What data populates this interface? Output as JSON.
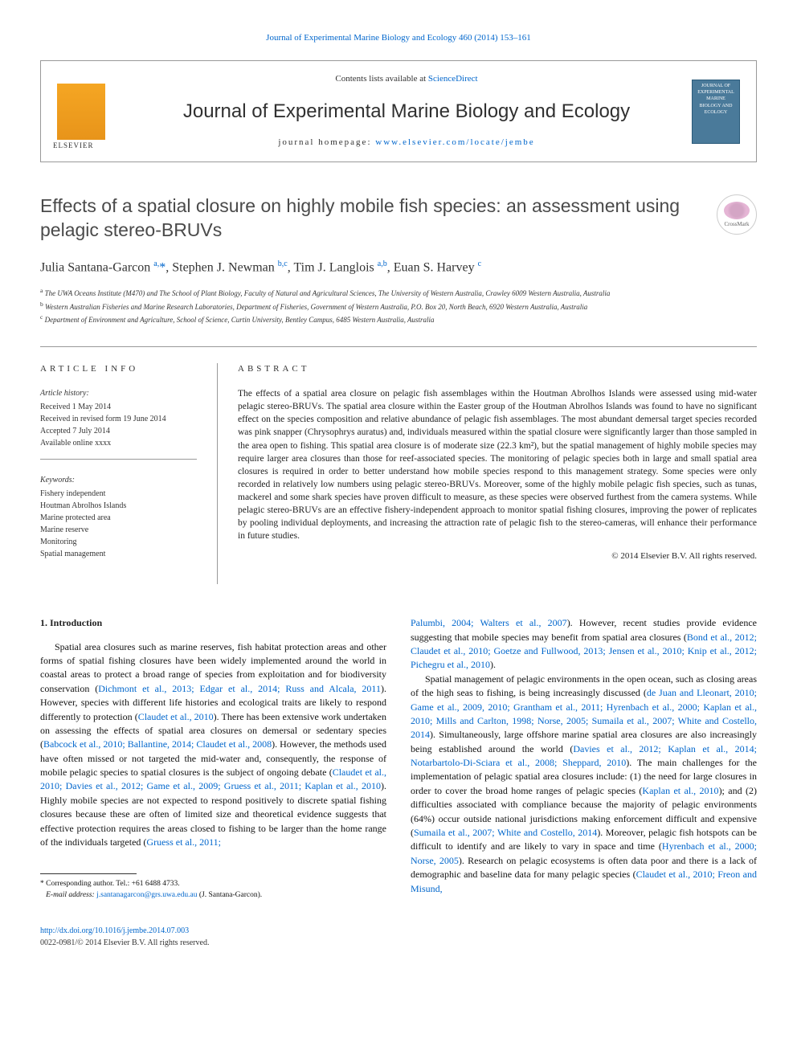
{
  "top_citation": "Journal of Experimental Marine Biology and Ecology 460 (2014) 153–161",
  "header": {
    "contents_prefix": "Contents lists available at ",
    "contents_link": "ScienceDirect",
    "journal_name": "Journal of Experimental Marine Biology and Ecology",
    "homepage_prefix": "journal homepage: ",
    "homepage_link": "www.elsevier.com/locate/jembe",
    "cover_text": "JOURNAL OF EXPERIMENTAL MARINE BIOLOGY AND ECOLOGY"
  },
  "article": {
    "title": "Effects of a spatial closure on highly mobile fish species: an assessment using pelagic stereo-BRUVs",
    "authors_html_parts": {
      "a1": "Julia Santana-Garcon ",
      "s1": "a,",
      "star": "*",
      "sep1": ", ",
      "a2": "Stephen J. Newman ",
      "s2": "b,c",
      "sep2": ", ",
      "a3": "Tim J. Langlois ",
      "s3": "a,b",
      "sep3": ", ",
      "a4": "Euan S. Harvey ",
      "s4": "c"
    },
    "affiliations": {
      "a": "The UWA Oceans Institute (M470) and The School of Plant Biology, Faculty of Natural and Agricultural Sciences, The University of Western Australia, Crawley 6009 Western Australia, Australia",
      "b": "Western Australian Fisheries and Marine Research Laboratories, Department of Fisheries, Government of Western Australia, P.O. Box 20, North Beach, 6920 Western Australia, Australia",
      "c": "Department of Environment and Agriculture, School of Science, Curtin University, Bentley Campus, 6485 Western Australia, Australia"
    }
  },
  "info": {
    "heading": "article info",
    "history_heading": "Article history:",
    "history": {
      "received": "Received 1 May 2014",
      "revised": "Received in revised form 19 June 2014",
      "accepted": "Accepted 7 July 2014",
      "online": "Available online xxxx"
    },
    "keywords_heading": "Keywords:",
    "keywords": [
      "Fishery independent",
      "Houtman Abrolhos Islands",
      "Marine protected area",
      "Marine reserve",
      "Monitoring",
      "Spatial management"
    ]
  },
  "abstract": {
    "heading": "abstract",
    "text": "The effects of a spatial area closure on pelagic fish assemblages within the Houtman Abrolhos Islands were assessed using mid-water pelagic stereo-BRUVs. The spatial area closure within the Easter group of the Houtman Abrolhos Islands was found to have no significant effect on the species composition and relative abundance of pelagic fish assemblages. The most abundant demersal target species recorded was pink snapper (Chrysophrys auratus) and, individuals measured within the spatial closure were significantly larger than those sampled in the area open to fishing. This spatial area closure is of moderate size (22.3 km²), but the spatial management of highly mobile species may require larger area closures than those for reef-associated species. The monitoring of pelagic species both in large and small spatial area closures is required in order to better understand how mobile species respond to this management strategy. Some species were only recorded in relatively low numbers using pelagic stereo-BRUVs. Moreover, some of the highly mobile pelagic fish species, such as tunas, mackerel and some shark species have proven difficult to measure, as these species were observed furthest from the camera systems. While pelagic stereo-BRUVs are an effective fishery-independent approach to monitor spatial fishing closures, improving the power of replicates by pooling individual deployments, and increasing the attraction rate of pelagic fish to the stereo-cameras, will enhance their performance in future studies.",
    "copyright": "© 2014 Elsevier B.V. All rights reserved."
  },
  "body": {
    "section_heading": "1. Introduction",
    "left_paragraphs": [
      {
        "pre": "Spatial area closures such as marine reserves, fish habitat protection areas and other forms of spatial fishing closures have been widely implemented around the world in coastal areas to protect a broad range of species from exploitation and for biodiversity conservation (",
        "ref1": "Dichmont et al., 2013; Edgar et al., 2014; Russ and Alcala, 2011",
        "mid1": "). However, species with different life histories and ecological traits are likely to respond differently to protection (",
        "ref2": "Claudet et al., 2010",
        "mid2": "). There has been extensive work undertaken on assessing the effects of spatial area closures on demersal or sedentary species (",
        "ref3": "Babcock et al., 2010; Ballantine, 2014; Claudet et al., 2008",
        "mid3": "). However, the methods used have often missed or not targeted the mid-water and, consequently, the response of mobile pelagic species to spatial closures is the subject of ongoing debate (",
        "ref4": "Claudet et al., 2010; Davies et al., 2012; Game et al., 2009; Gruess et al., 2011; Kaplan et al., 2010",
        "mid4": "). Highly mobile species are not expected to respond positively to discrete spatial fishing closures because these are often of limited size and theoretical evidence suggests that effective protection requires the areas closed to fishing to be larger than the home range of the individuals targeted (",
        "ref5": "Gruess et al., 2011;"
      }
    ],
    "right_paragraphs": [
      {
        "ref0": "Palumbi, 2004; Walters et al., 2007",
        "mid0": "). However, recent studies provide evidence suggesting that mobile species may benefit from spatial area closures (",
        "ref1": "Bond et al., 2012; Claudet et al., 2010; Goetze and Fullwood, 2013; Jensen et al., 2010; Knip et al., 2012; Pichegru et al., 2010",
        "post1": ")."
      },
      {
        "pre": "Spatial management of pelagic environments in the open ocean, such as closing areas of the high seas to fishing, is being increasingly discussed (",
        "ref1": "de Juan and Lleonart, 2010; Game et al., 2009, 2010; Grantham et al., 2011; Hyrenbach et al., 2000; Kaplan et al., 2010; Mills and Carlton, 1998; Norse, 2005; Sumaila et al., 2007; White and Costello, 2014",
        "mid1": "). Simultaneously, large offshore marine spatial area closures are also increasingly being established around the world (",
        "ref2": "Davies et al., 2012; Kaplan et al., 2014; Notarbartolo-Di-Sciara et al., 2008; Sheppard, 2010",
        "mid2": "). The main challenges for the implementation of pelagic spatial area closures include: (1) the need for large closures in order to cover the broad home ranges of pelagic species (",
        "ref3": "Kaplan et al., 2010",
        "mid3": "); and (2) difficulties associated with compliance because the majority of pelagic environments (64%) occur outside national jurisdictions making enforcement difficult and expensive (",
        "ref4": "Sumaila et al., 2007; White and Costello, 2014",
        "mid4": "). Moreover, pelagic fish hotspots can be difficult to identify and are likely to vary in space and time (",
        "ref5": "Hyrenbach et al., 2000; Norse, 2005",
        "mid5": "). Research on pelagic ecosystems is often data poor and there is a lack of demographic and baseline data for many pelagic species (",
        "ref6": "Claudet et al., 2010; Freon and Misund,"
      }
    ]
  },
  "footnote": {
    "corr_label": "* Corresponding author. Tel.: +61 6488 4733.",
    "email_label": "E-mail address: ",
    "email": "j.santanagarcon@grs.uwa.edu.au",
    "email_suffix": " (J. Santana-Garcon)."
  },
  "footer": {
    "doi": "http://dx.doi.org/10.1016/j.jembe.2014.07.003",
    "issn_copyright": "0022-0981/© 2014 Elsevier B.V. All rights reserved."
  },
  "colors": {
    "link": "#0066cc",
    "text": "#111111",
    "heading": "#4a4a4a",
    "border": "#999999"
  }
}
